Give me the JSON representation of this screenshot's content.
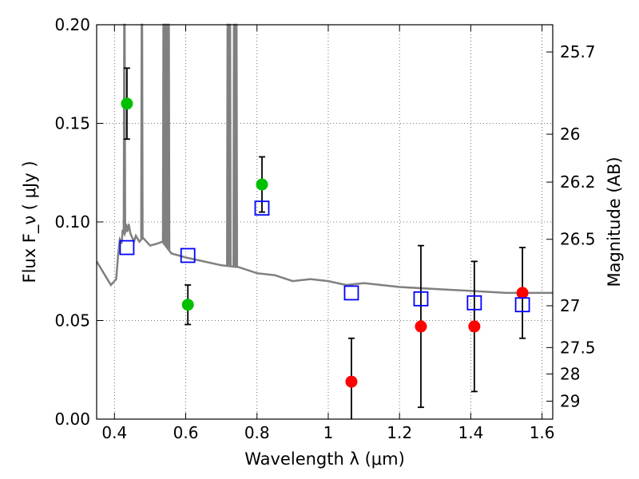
{
  "chart_data": {
    "type": "scatter",
    "xlabel": "Wavelength  λ (μm)",
    "ylabel": "Flux  F_ν  ( μJy )",
    "y2label": "Magnitude (AB)",
    "xlim": [
      0.35,
      1.63
    ],
    "ylim": [
      0.0,
      0.2
    ],
    "grid": true,
    "x_ticks": [
      0.4,
      0.6,
      0.8,
      1.0,
      1.2,
      1.4,
      1.6
    ],
    "x_tick_labels": [
      "0.4",
      "0.6",
      "0.8",
      "1",
      "1.2",
      "1.4",
      "1.6"
    ],
    "y_ticks": [
      0.0,
      0.05,
      0.1,
      0.15,
      0.2
    ],
    "y_tick_labels": [
      "0.00",
      "0.05",
      "0.10",
      "0.15",
      "0.20"
    ],
    "y2_ticks": [
      {
        "label": "25.7",
        "flux": 0.1862
      },
      {
        "label": "26",
        "flux": 0.1445
      },
      {
        "label": "26.2",
        "flux": 0.1202
      },
      {
        "label": "26.5",
        "flux": 0.0912
      },
      {
        "label": "27",
        "flux": 0.0575
      },
      {
        "label": "27.5",
        "flux": 0.0363
      },
      {
        "label": "28",
        "flux": 0.0229
      },
      {
        "label": "29",
        "flux": 0.0091
      }
    ],
    "series": [
      {
        "marker": "circle",
        "color": "#00c000",
        "points": [
          {
            "x": 0.435,
            "y": 0.16,
            "err": 0.018
          },
          {
            "x": 0.606,
            "y": 0.058,
            "err": 0.01
          },
          {
            "x": 0.814,
            "y": 0.119,
            "err": 0.014
          }
        ]
      },
      {
        "marker": "circle",
        "color": "#ff0000",
        "points": [
          {
            "x": 1.065,
            "y": 0.019,
            "err": 0.022
          },
          {
            "x": 1.26,
            "y": 0.047,
            "err": 0.041
          },
          {
            "x": 1.41,
            "y": 0.047,
            "err": 0.033
          },
          {
            "x": 1.545,
            "y": 0.064,
            "err": 0.023
          }
        ]
      },
      {
        "marker": "open-square",
        "color": "#0000ff",
        "points": [
          {
            "x": 0.435,
            "y": 0.087
          },
          {
            "x": 0.606,
            "y": 0.083
          },
          {
            "x": 0.814,
            "y": 0.107
          },
          {
            "x": 1.065,
            "y": 0.064
          },
          {
            "x": 1.26,
            "y": 0.061
          },
          {
            "x": 1.41,
            "y": 0.059
          },
          {
            "x": 1.545,
            "y": 0.058
          }
        ]
      }
    ],
    "model_spectrum": {
      "color": "#808080",
      "x": [
        0.35,
        0.37,
        0.39,
        0.405,
        0.41,
        0.415,
        0.42,
        0.423,
        0.428,
        0.432,
        0.436,
        0.44,
        0.445,
        0.45,
        0.455,
        0.46,
        0.47,
        0.48,
        0.5,
        0.52,
        0.535,
        0.56,
        0.6,
        0.65,
        0.7,
        0.75,
        0.8,
        0.85,
        0.9,
        0.95,
        1.0,
        1.05,
        1.1,
        1.2,
        1.3,
        1.4,
        1.5,
        1.63
      ],
      "y": [
        0.08,
        0.074,
        0.068,
        0.071,
        0.083,
        0.091,
        0.089,
        0.096,
        0.094,
        0.099,
        0.095,
        0.099,
        0.094,
        0.092,
        0.09,
        0.093,
        0.09,
        0.092,
        0.088,
        0.089,
        0.09,
        0.084,
        0.082,
        0.08,
        0.078,
        0.077,
        0.074,
        0.073,
        0.07,
        0.071,
        0.07,
        0.068,
        0.069,
        0.067,
        0.066,
        0.065,
        0.064,
        0.064
      ],
      "emission_lines": [
        {
          "x": 0.428,
          "peak": 0.2
        },
        {
          "x": 0.477,
          "peak": 0.2
        },
        {
          "x": 0.538,
          "peak": 0.2
        },
        {
          "x": 0.542,
          "peak": 0.2
        },
        {
          "x": 0.548,
          "peak": 0.2
        },
        {
          "x": 0.552,
          "peak": 0.2
        },
        {
          "x": 0.718,
          "peak": 0.2
        },
        {
          "x": 0.724,
          "peak": 0.2
        },
        {
          "x": 0.736,
          "peak": 0.2
        },
        {
          "x": 0.742,
          "peak": 0.2
        }
      ]
    }
  }
}
